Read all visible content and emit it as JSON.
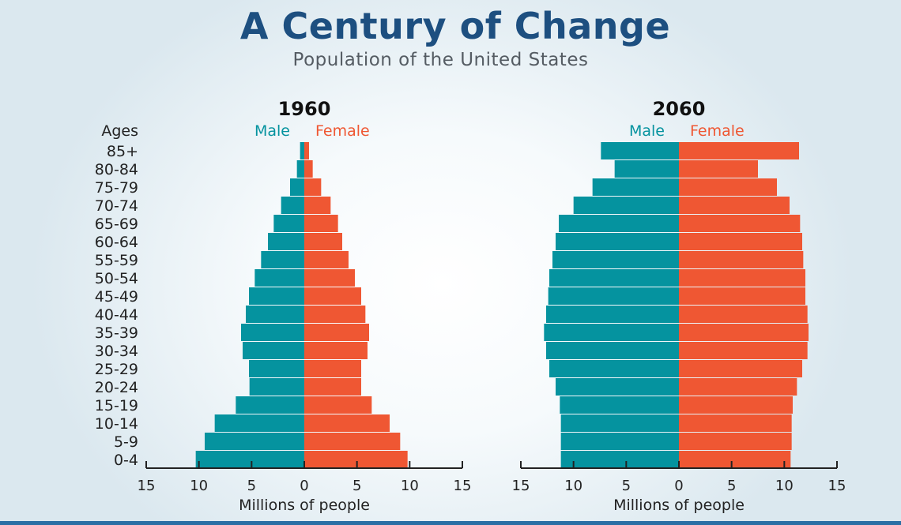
{
  "title": "A Century of Change",
  "subtitle": "Population of the United States",
  "colors": {
    "male": "#05939f",
    "female": "#ef5733",
    "title": "#1d4f80"
  },
  "chart_data": [
    {
      "type": "bar",
      "orientation": "horizontal-population-pyramid",
      "title": "1960",
      "ylabel": "Ages",
      "xlabel": "Millions of people",
      "xlim": [
        -15,
        15
      ],
      "xticks": [
        "15",
        "10",
        "5",
        "0",
        "5",
        "10",
        "15"
      ],
      "categories": [
        "85+",
        "80-84",
        "75-79",
        "70-74",
        "65-69",
        "60-64",
        "55-59",
        "50-54",
        "45-49",
        "40-44",
        "35-39",
        "30-34",
        "25-29",
        "20-24",
        "15-19",
        "10-14",
        "5-9",
        "0-4"
      ],
      "series": [
        {
          "name": "Male",
          "values": [
            0.4,
            0.7,
            1.35,
            2.2,
            2.9,
            3.45,
            4.1,
            4.7,
            5.25,
            5.55,
            6.0,
            5.85,
            5.25,
            5.2,
            6.5,
            8.5,
            9.45,
            10.3
          ]
        },
        {
          "name": "Female",
          "values": [
            0.45,
            0.8,
            1.6,
            2.5,
            3.2,
            3.6,
            4.2,
            4.8,
            5.4,
            5.8,
            6.15,
            6.0,
            5.4,
            5.4,
            6.4,
            8.1,
            9.1,
            9.8
          ]
        }
      ]
    },
    {
      "type": "bar",
      "orientation": "horizontal-population-pyramid",
      "title": "2060",
      "xlabel": "Millions of people",
      "xlim": [
        -15,
        15
      ],
      "xticks": [
        "15",
        "10",
        "5",
        "0",
        "5",
        "10",
        "15"
      ],
      "categories": [
        "85+",
        "80-84",
        "75-79",
        "70-74",
        "65-69",
        "60-64",
        "55-59",
        "50-54",
        "45-49",
        "40-44",
        "35-39",
        "30-34",
        "25-29",
        "20-24",
        "15-19",
        "10-14",
        "5-9",
        "0-4"
      ],
      "series": [
        {
          "name": "Male",
          "values": [
            7.4,
            6.1,
            8.2,
            10.0,
            11.4,
            11.7,
            12.0,
            12.3,
            12.4,
            12.6,
            12.8,
            12.6,
            12.3,
            11.7,
            11.3,
            11.2,
            11.2,
            11.2
          ]
        },
        {
          "name": "Female",
          "values": [
            11.4,
            7.5,
            9.3,
            10.5,
            11.5,
            11.7,
            11.8,
            12.0,
            12.0,
            12.2,
            12.3,
            12.2,
            11.7,
            11.2,
            10.8,
            10.7,
            10.7,
            10.6
          ]
        }
      ]
    }
  ]
}
